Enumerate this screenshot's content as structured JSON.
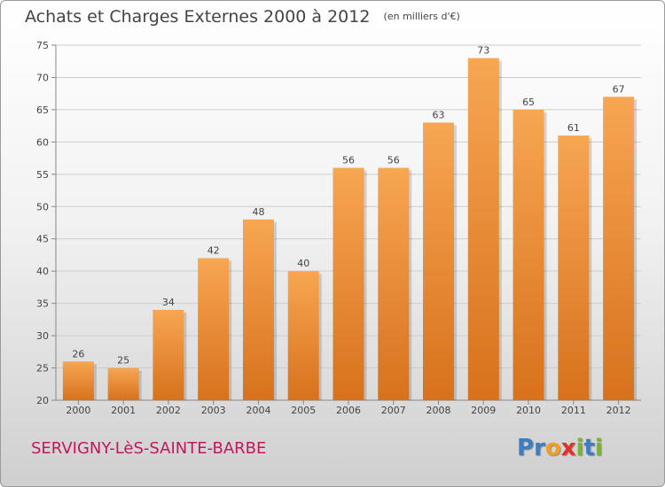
{
  "title": "Achats et Charges Externes 2000 à 2012",
  "unit": "(en milliers d'€)",
  "location": "SERVIGNY-LèS-SAINTE-BARBE",
  "logo_letters": [
    {
      "ch": "P",
      "color": "#3a7fc4"
    },
    {
      "ch": "r",
      "color": "#3a7fc4"
    },
    {
      "ch": "o",
      "color": "#f0a020"
    },
    {
      "ch": "x",
      "color": "#e0322a"
    },
    {
      "ch": "i",
      "color": "#7ab52e"
    },
    {
      "ch": "t",
      "color": "#3a7fc4"
    },
    {
      "ch": "i",
      "color": "#7ab52e"
    }
  ],
  "colors": {
    "bar_light": "#f7a652",
    "bar_dark": "#d8711c",
    "grid": "#cccccc",
    "axis": "#888888",
    "text": "#444444"
  },
  "chart_data": {
    "type": "bar",
    "title": "Achats et Charges Externes 2000 à 2012",
    "subtitle": "(en milliers d'€)",
    "xlabel": "",
    "ylabel": "",
    "ylim": [
      20,
      75
    ],
    "yticks": [
      20,
      25,
      30,
      35,
      40,
      45,
      50,
      55,
      60,
      65,
      70,
      75
    ],
    "grid": true,
    "categories": [
      "2000",
      "2001",
      "2002",
      "2003",
      "2004",
      "2005",
      "2006",
      "2007",
      "2008",
      "2009",
      "2010",
      "2011",
      "2012"
    ],
    "values": [
      26,
      25,
      34,
      42,
      48,
      40,
      56,
      56,
      63,
      73,
      65,
      61,
      67
    ]
  }
}
